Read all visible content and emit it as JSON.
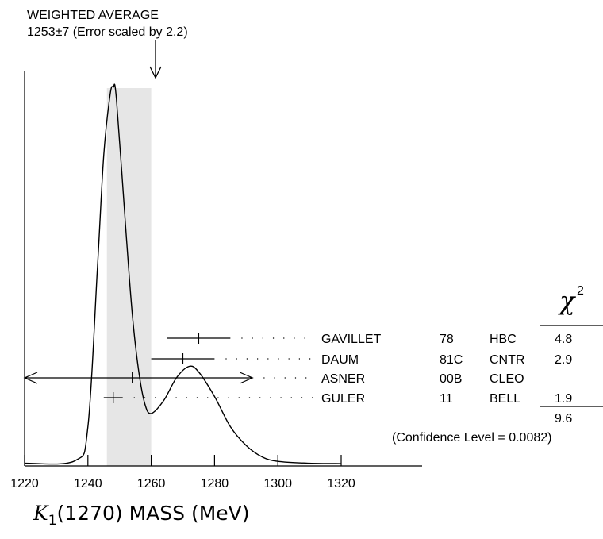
{
  "chart_data": {
    "type": "ideogram",
    "title": "WEIGHTED AVERAGE",
    "subtitle": "1253±7 (Error scaled by 2.2)",
    "weighted_average": {
      "value": 1253,
      "error": 7,
      "scale_factor": 2.2,
      "band": [
        1246,
        1260
      ]
    },
    "x_axis": {
      "label_symbol": "K",
      "label_subscript": "1",
      "label_rest": "(1270) MASS (MeV)",
      "range": [
        1220,
        1320
      ],
      "ticks": [
        1220,
        1240,
        1260,
        1280,
        1300,
        1320
      ],
      "tick_labels": [
        "1220",
        "1240",
        "1260",
        "1280",
        "1300",
        "1320"
      ]
    },
    "chi2_header": "χ",
    "chi2_power": "2",
    "measurements": [
      {
        "author": "GAVILLET",
        "year": "78",
        "technique": "HBC",
        "chi2": "4.8",
        "value": 1275,
        "low": 1265,
        "high": 1285
      },
      {
        "author": "DAUM",
        "year": "81C",
        "technique": "CNTR",
        "chi2": "2.9",
        "value": 1270,
        "low": 1260,
        "high": 1280
      },
      {
        "author": "ASNER",
        "year": "00B",
        "technique": "CLEO",
        "chi2": "",
        "value": 1254,
        "low": 1220,
        "high": 1292
      },
      {
        "author": "GULER",
        "year": "11",
        "technique": "BELL",
        "chi2": "1.9",
        "value": 1248,
        "low": 1245,
        "high": 1251
      }
    ],
    "chi2_total": "9.6",
    "confidence_level_text": "(Confidence Level = 0.0082)",
    "curve": [
      [
        1220,
        0.003
      ],
      [
        1236,
        0.01
      ],
      [
        1240,
        0.1
      ],
      [
        1243,
        0.52
      ],
      [
        1245,
        0.82
      ],
      [
        1247,
        0.98
      ],
      [
        1248,
        1.0
      ],
      [
        1249,
        0.97
      ],
      [
        1252,
        0.62
      ],
      [
        1254,
        0.4
      ],
      [
        1256,
        0.25
      ],
      [
        1258,
        0.16
      ],
      [
        1260,
        0.135
      ],
      [
        1264,
        0.17
      ],
      [
        1268,
        0.23
      ],
      [
        1272,
        0.26
      ],
      [
        1275,
        0.245
      ],
      [
        1280,
        0.18
      ],
      [
        1285,
        0.1
      ],
      [
        1290,
        0.05
      ],
      [
        1295,
        0.02
      ],
      [
        1300,
        0.008
      ],
      [
        1310,
        0.003
      ],
      [
        1320,
        0.002
      ]
    ]
  }
}
